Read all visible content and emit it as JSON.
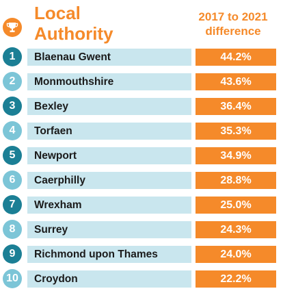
{
  "header": {
    "title_line1": "Local",
    "title_line2": "Authority",
    "diff_line1": "2017 to 2021",
    "diff_line2": "difference"
  },
  "colors": {
    "accent_orange": "#f58a2a",
    "rank_dark": "#1b7f95",
    "rank_light": "#7cc5d7",
    "name_bar": "#c9e6ee"
  },
  "chart_data": {
    "type": "table",
    "columns": [
      "Local Authority",
      "2017 to 2021 difference"
    ],
    "rows": [
      {
        "rank": "1",
        "name": "Blaenau Gwent",
        "value": "44.2%"
      },
      {
        "rank": "2",
        "name": "Monmouthshire",
        "value": "43.6%"
      },
      {
        "rank": "3",
        "name": "Bexley",
        "value": "36.4%"
      },
      {
        "rank": "4",
        "name": "Torfaen",
        "value": "35.3%"
      },
      {
        "rank": "5",
        "name": "Newport",
        "value": "34.9%"
      },
      {
        "rank": "6",
        "name": "Caerphilly",
        "value": "28.8%"
      },
      {
        "rank": "7",
        "name": "Wrexham",
        "value": "25.0%"
      },
      {
        "rank": "8",
        "name": "Surrey",
        "value": "24.3%"
      },
      {
        "rank": "9",
        "name": "Richmond upon Thames",
        "value": "24.0%"
      },
      {
        "rank": "10",
        "name": "Croydon",
        "value": "22.2%"
      }
    ]
  }
}
